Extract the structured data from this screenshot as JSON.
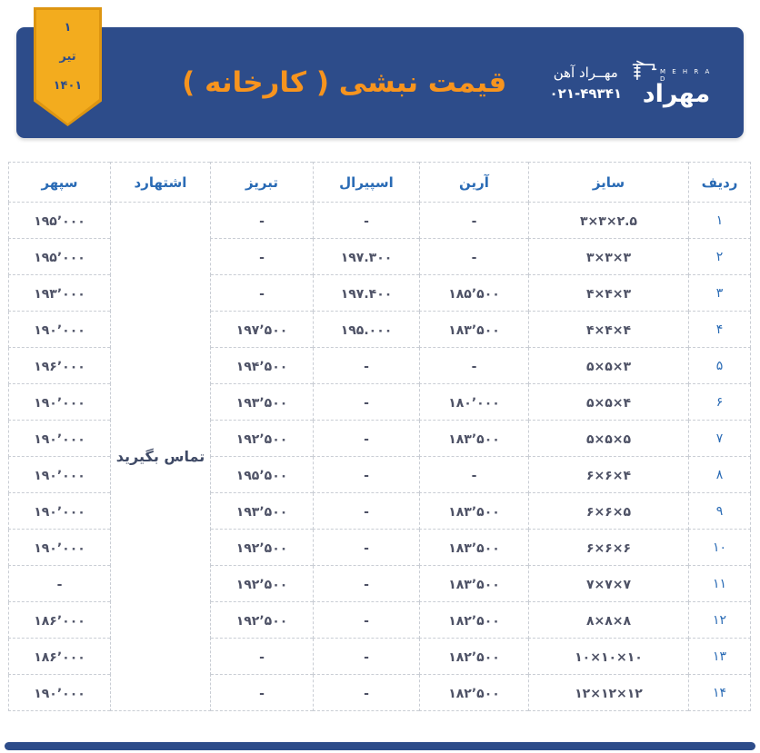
{
  "header": {
    "title": "قیمت نبشی ( کارخانه )",
    "ribbon": {
      "day": "۱",
      "month": "تیر",
      "year": "۱۴۰۱"
    },
    "brand": {
      "name": "مهــراد آهن",
      "phone": "۰۲۱-۴۹۳۴۱",
      "logo_fa": "مهراد",
      "logo_latin": "M E H R A D"
    }
  },
  "table": {
    "columns": [
      "ردیف",
      "سایز",
      "آرین",
      "اسپیرال",
      "تبریز",
      "اشتهارد",
      "سپهر"
    ],
    "eshtehard_note": "تماس بگیرید",
    "rows": [
      {
        "no": "۱",
        "size": "۳×۳×۲.۵",
        "arian": "-",
        "spiral": "-",
        "tabriz": "-",
        "sepehr": "۱۹۵٬۰۰۰"
      },
      {
        "no": "۲",
        "size": "۳×۳×۳",
        "arian": "-",
        "spiral": "۱۹۷.۳۰۰",
        "tabriz": "-",
        "sepehr": "۱۹۵٬۰۰۰"
      },
      {
        "no": "۳",
        "size": "۴×۴×۳",
        "arian": "۱۸۵٬۵۰۰",
        "spiral": "۱۹۷.۴۰۰",
        "tabriz": "-",
        "sepehr": "۱۹۳٬۰۰۰"
      },
      {
        "no": "۴",
        "size": "۴×۴×۴",
        "arian": "۱۸۳٬۵۰۰",
        "spiral": "۱۹۵.۰۰۰",
        "tabriz": "۱۹۷٬۵۰۰",
        "sepehr": "۱۹۰٬۰۰۰"
      },
      {
        "no": "۵",
        "size": "۵×۵×۳",
        "arian": "-",
        "spiral": "-",
        "tabriz": "۱۹۴٬۵۰۰",
        "sepehr": "۱۹۶٬۰۰۰"
      },
      {
        "no": "۶",
        "size": "۵×۵×۴",
        "arian": "۱۸۰٬۰۰۰",
        "spiral": "-",
        "tabriz": "۱۹۳٬۵۰۰",
        "sepehr": "۱۹۰٬۰۰۰"
      },
      {
        "no": "۷",
        "size": "۵×۵×۵",
        "arian": "۱۸۳٬۵۰۰",
        "spiral": "-",
        "tabriz": "۱۹۲٬۵۰۰",
        "sepehr": "۱۹۰٬۰۰۰"
      },
      {
        "no": "۸",
        "size": "۶×۶×۴",
        "arian": "-",
        "spiral": "-",
        "tabriz": "۱۹۵٬۵۰۰",
        "sepehr": "۱۹۰٬۰۰۰"
      },
      {
        "no": "۹",
        "size": "۶×۶×۵",
        "arian": "۱۸۳٬۵۰۰",
        "spiral": "-",
        "tabriz": "۱۹۳٬۵۰۰",
        "sepehr": "۱۹۰٬۰۰۰"
      },
      {
        "no": "۱۰",
        "size": "۶×۶×۶",
        "arian": "۱۸۳٬۵۰۰",
        "spiral": "-",
        "tabriz": "۱۹۲٬۵۰۰",
        "sepehr": "۱۹۰٬۰۰۰"
      },
      {
        "no": "۱۱",
        "size": "۷×۷×۷",
        "arian": "۱۸۳٬۵۰۰",
        "spiral": "-",
        "tabriz": "۱۹۲٬۵۰۰",
        "sepehr": "-"
      },
      {
        "no": "۱۲",
        "size": "۸×۸×۸",
        "arian": "۱۸۲٬۵۰۰",
        "spiral": "-",
        "tabriz": "۱۹۲٬۵۰۰",
        "sepehr": "۱۸۶٬۰۰۰"
      },
      {
        "no": "۱۳",
        "size": "۱۰×۱۰×۱۰",
        "arian": "۱۸۲٬۵۰۰",
        "spiral": "-",
        "tabriz": "-",
        "sepehr": "۱۸۶٬۰۰۰"
      },
      {
        "no": "۱۴",
        "size": "۱۲×۱۲×۱۲",
        "arian": "۱۸۲٬۵۰۰",
        "spiral": "-",
        "tabriz": "-",
        "sepehr": "۱۹۰٬۰۰۰"
      }
    ]
  },
  "colors": {
    "banner_bg": "#2d4c8a",
    "title_orange": "#f7941e",
    "ribbon_gold": "#f3ac1e",
    "ribbon_border": "#dd9511",
    "header_text_blue": "#2a6bb5",
    "cell_text": "#4e5266",
    "border_gray": "#c9cdd4"
  }
}
